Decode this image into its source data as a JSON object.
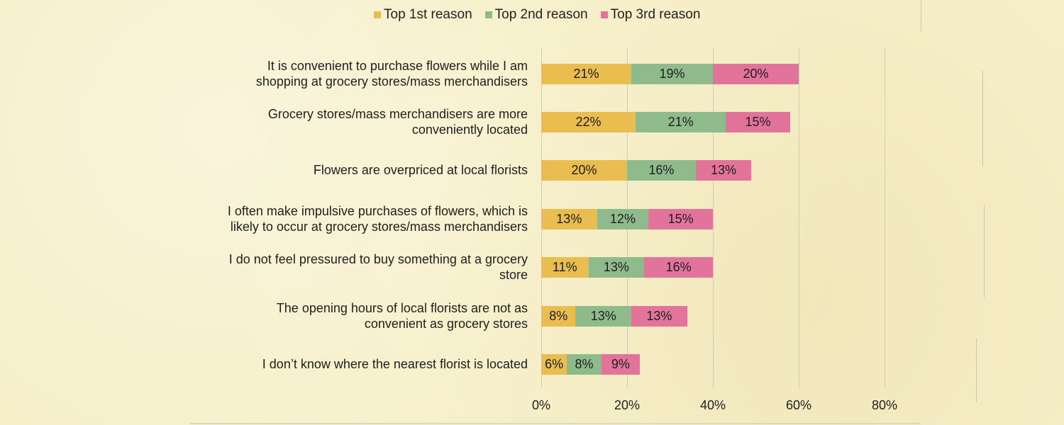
{
  "chart_data": {
    "type": "bar",
    "orientation": "horizontal",
    "stacked": true,
    "categories": [
      "It is convenient to purchase flowers while I am\nshopping at grocery stores/mass merchandisers",
      "Grocery stores/mass merchandisers are more\nconveniently located",
      "Flowers are overpriced at local florists",
      "I often make impulsive purchases of flowers, which is\nlikely to occur at grocery stores/mass merchandisers",
      "I do not feel pressured to buy something at a grocery\nstore",
      "The opening hours of local florists are not as\nconvenient as grocery stores",
      "I don’t know where the nearest florist is located"
    ],
    "series": [
      {
        "name": "Top 1st reason",
        "color": "#e9bd4f",
        "values": [
          21,
          22,
          20,
          13,
          11,
          8,
          6
        ]
      },
      {
        "name": "Top 2nd reason",
        "color": "#8fbb8c",
        "values": [
          19,
          21,
          16,
          12,
          13,
          13,
          8
        ]
      },
      {
        "name": "Top 3rd reason",
        "color": "#e2739a",
        "values": [
          20,
          15,
          13,
          15,
          16,
          13,
          9
        ]
      }
    ],
    "xlim": [
      0,
      80
    ],
    "xticks": [
      "0%",
      "20%",
      "40%",
      "60%",
      "80%"
    ],
    "grid": true,
    "legend_position": "top"
  }
}
